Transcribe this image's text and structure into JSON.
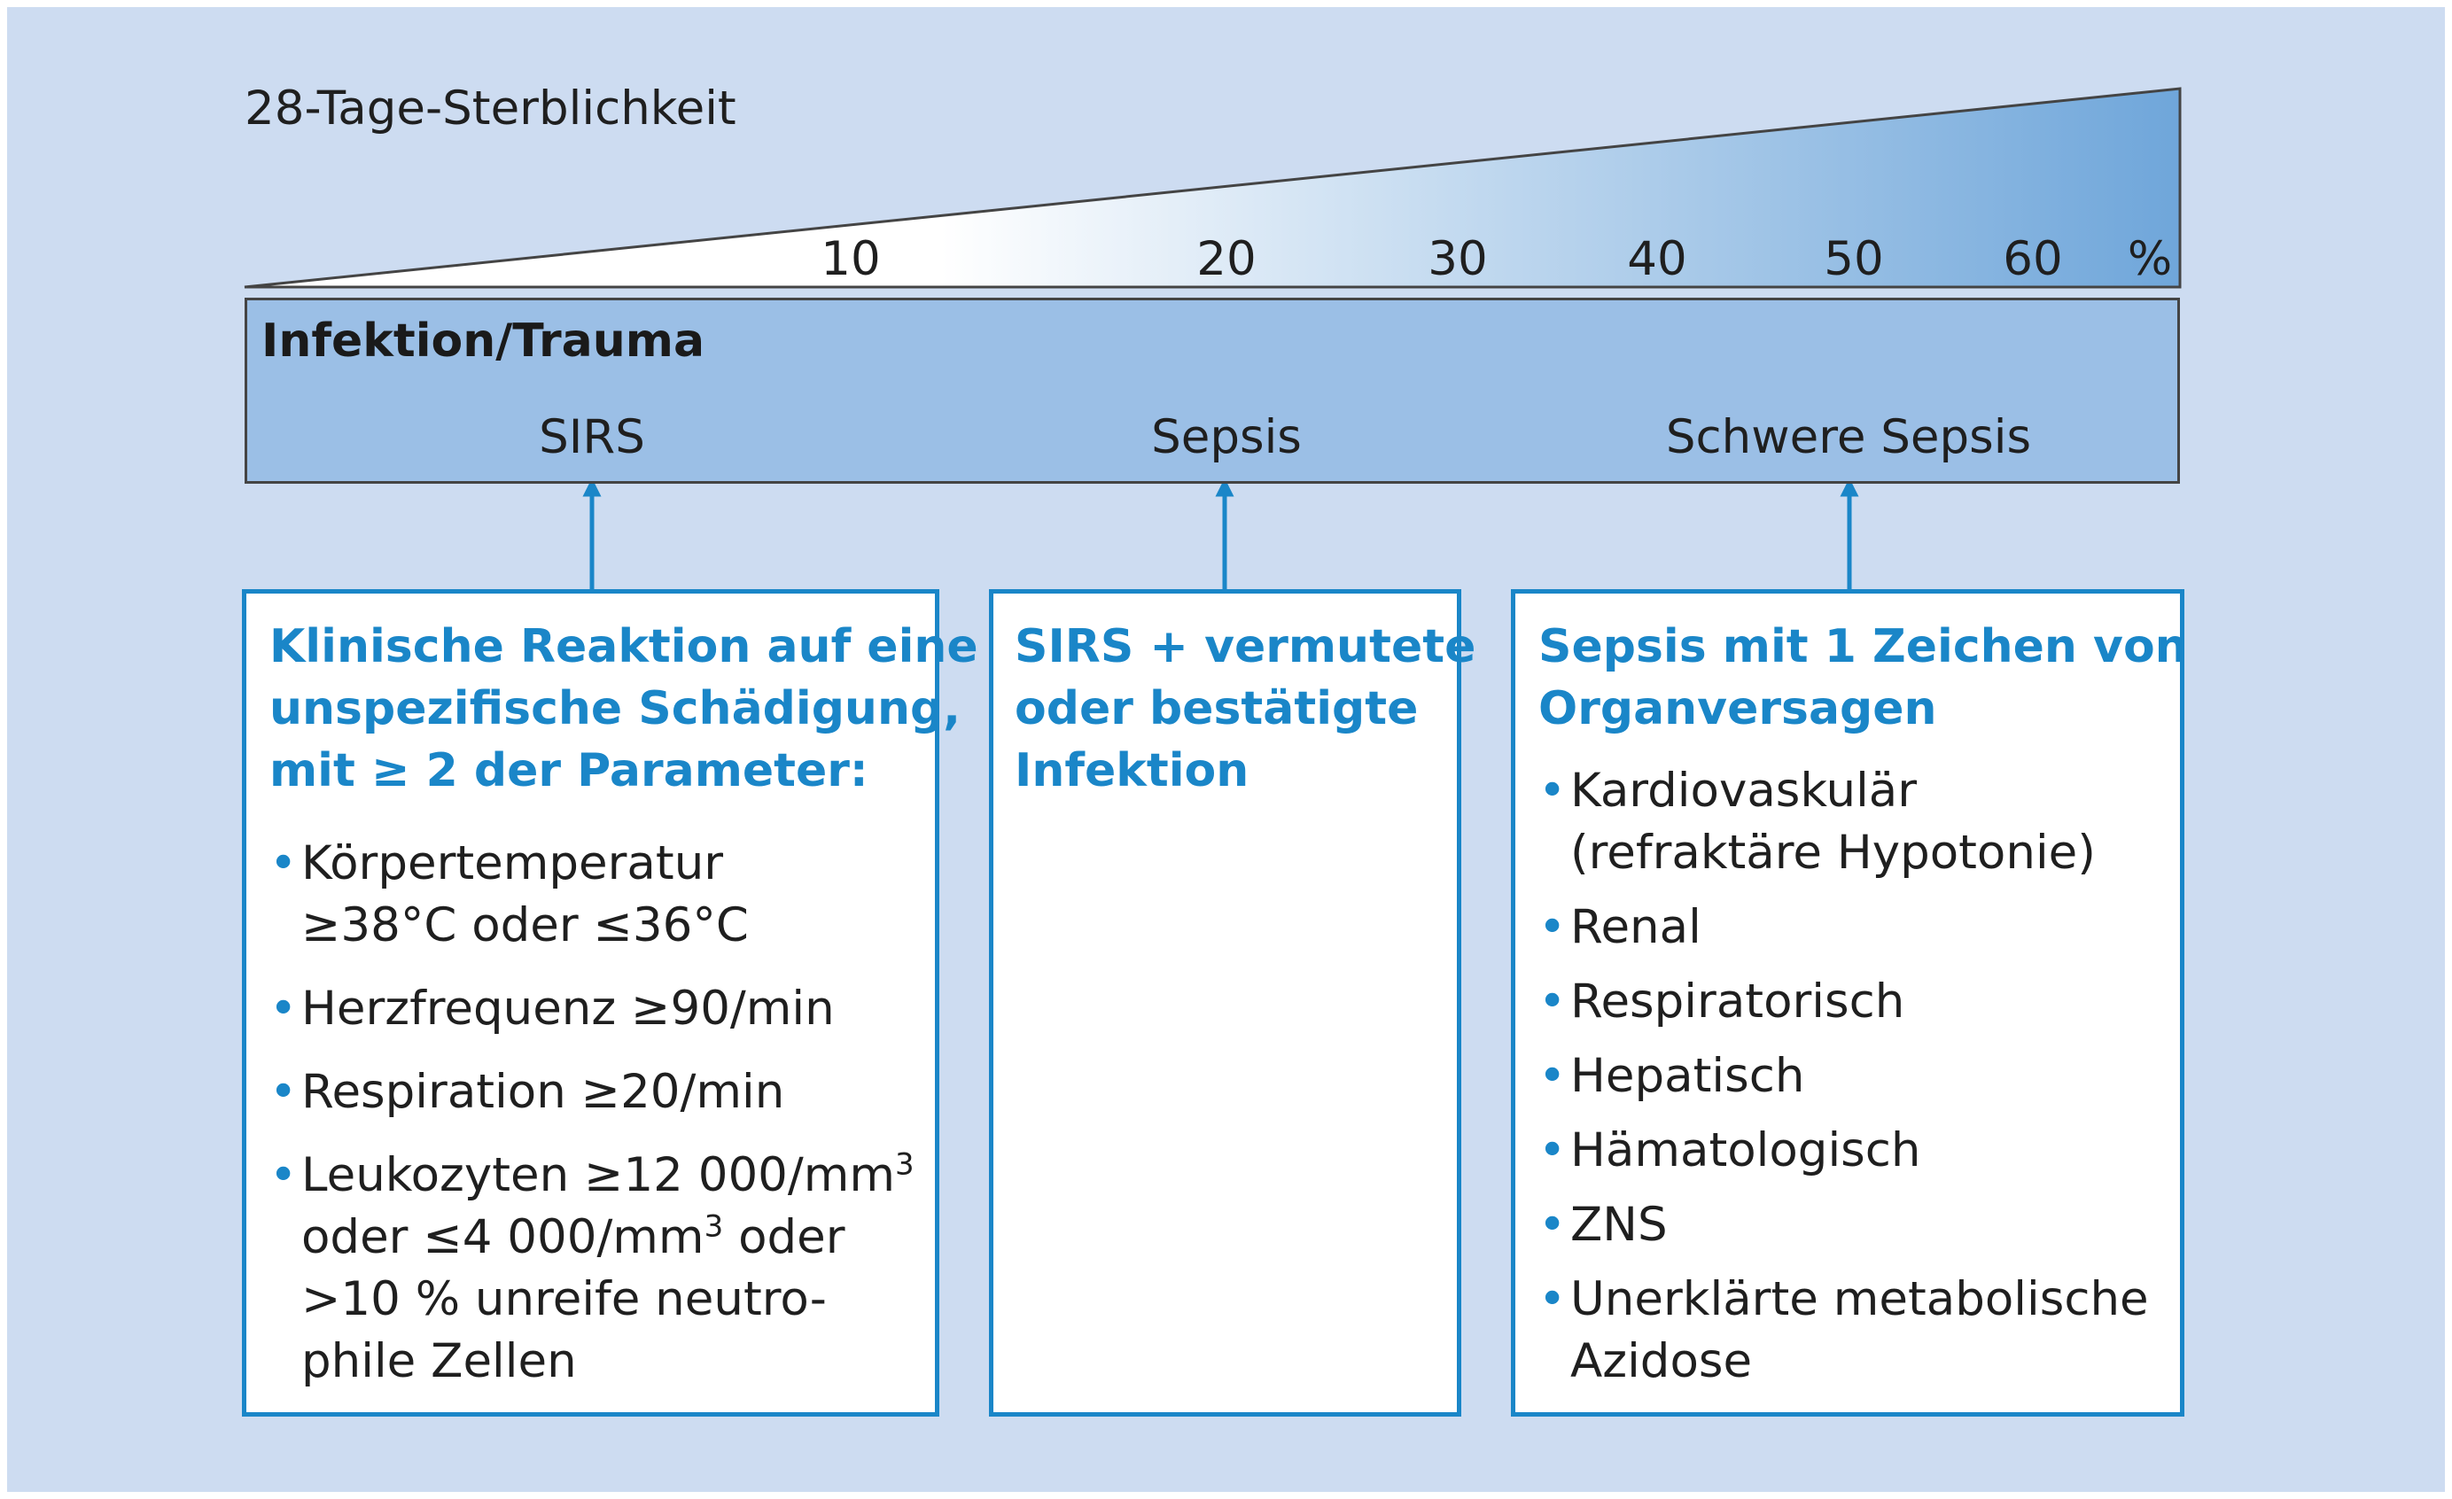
{
  "mortality": {
    "label": "28-Tage-Sterblichkeit",
    "ticks": [
      "10",
      "20",
      "30",
      "40",
      "50",
      "60"
    ],
    "unit": "%"
  },
  "stages": {
    "title": "Infektion/Trauma",
    "items": [
      "SIRS",
      "Sepsis",
      "Schwere Sepsis"
    ]
  },
  "boxes": [
    {
      "title_lines": [
        "Klinische Reaktion auf eine",
        "unspezifische Schädigung,",
        "mit ≥ 2 der Parameter:"
      ],
      "items": [
        {
          "lines": [
            "Körpertemperatur",
            "≥38°C oder ≤36°C"
          ]
        },
        {
          "lines": [
            "Herzfrequenz ≥90/min"
          ]
        },
        {
          "lines": [
            "Respiration ≥20/min"
          ]
        },
        {
          "lines": [
            "Leukozyten ≥12 000/mm",
            "oder ≤4 000/mm",
            " oder",
            ">10 % unreife neutro-",
            "phile Zellen"
          ],
          "sup": "3"
        }
      ]
    },
    {
      "title_lines": [
        "SIRS + vermutete",
        "oder bestätigte",
        "Infektion"
      ],
      "items": []
    },
    {
      "title_lines": [
        "Sepsis mit 1 Zeichen von",
        "Organversagen"
      ],
      "items": [
        {
          "lines": [
            "Kardiovaskulär",
            "(refraktäre Hypotonie)"
          ]
        },
        {
          "lines": [
            "Renal"
          ]
        },
        {
          "lines": [
            "Respiratorisch"
          ]
        },
        {
          "lines": [
            "Hepatisch"
          ]
        },
        {
          "lines": [
            "Hämatologisch"
          ]
        },
        {
          "lines": [
            "ZNS"
          ]
        },
        {
          "lines": [
            "Unerklärte metabolische",
            "Azidose"
          ]
        }
      ]
    }
  ],
  "colors": {
    "background": "#cddcf1",
    "bar": "#9bbfe6",
    "accent": "#1a86c8",
    "wedge_end": "#6fa6da"
  }
}
